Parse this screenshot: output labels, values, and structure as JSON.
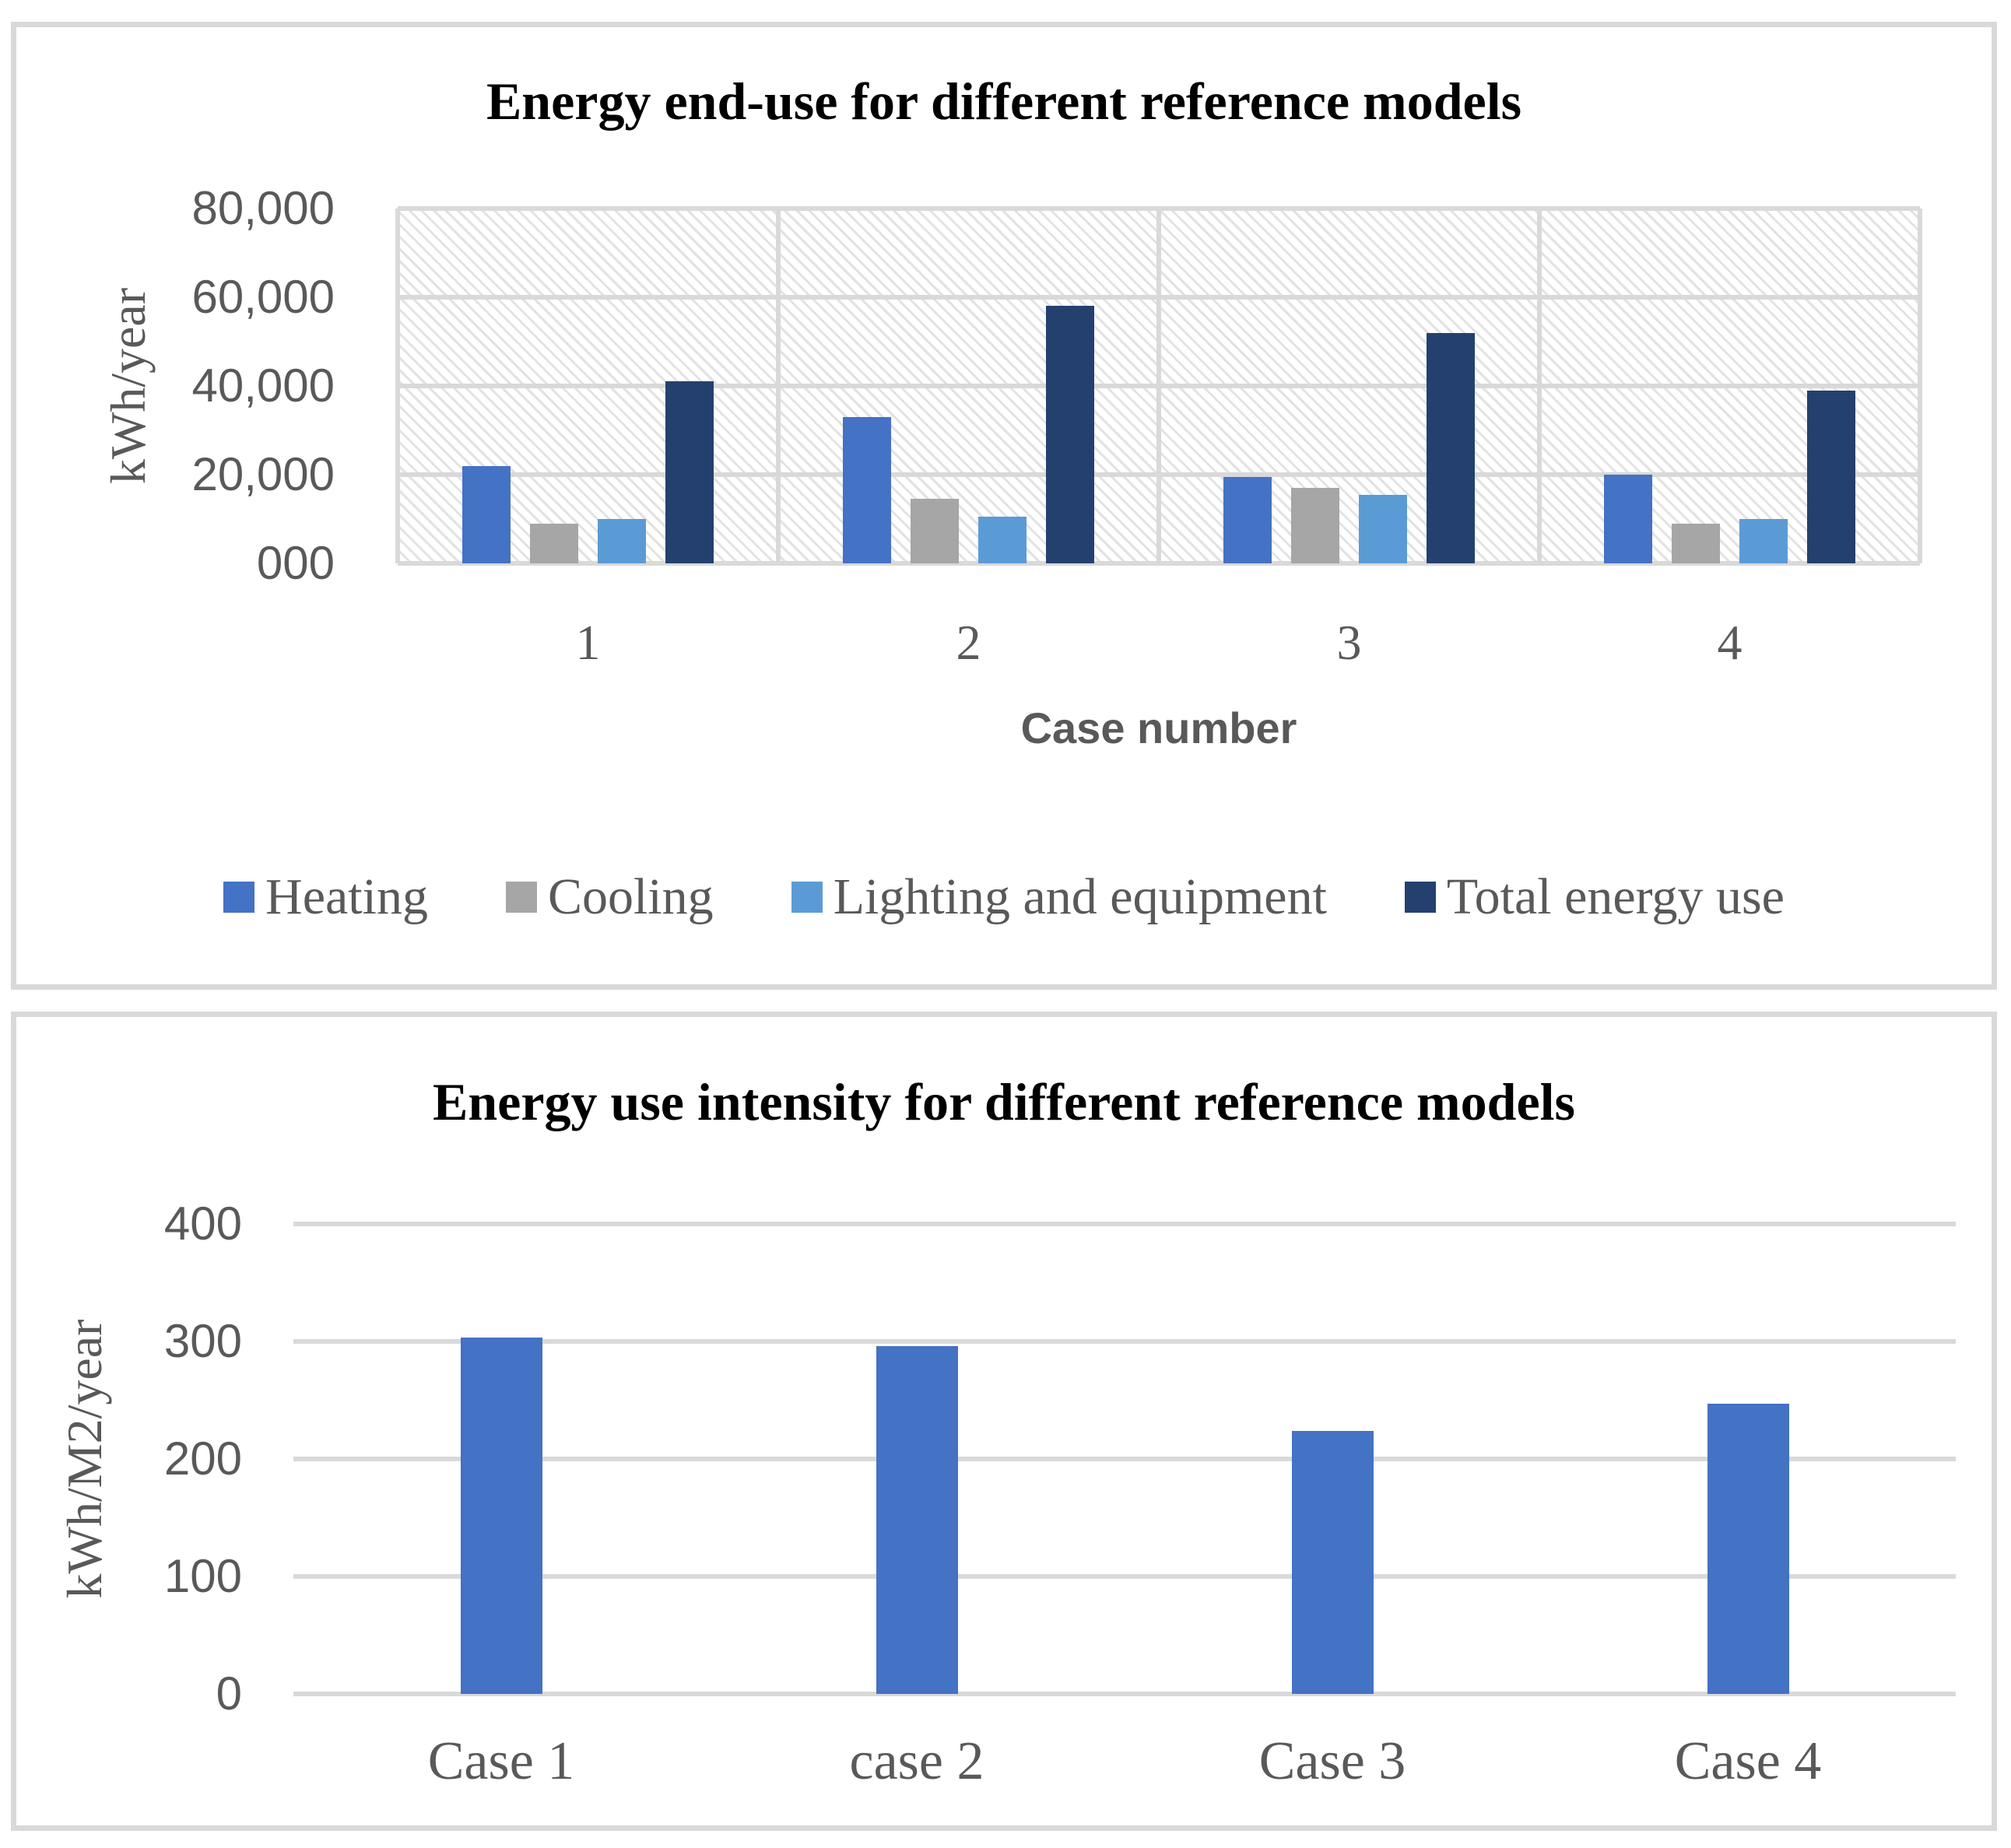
{
  "figure": {
    "background": "#FFFFFF",
    "panel_border_color": "#D9D9D9",
    "gridline_color": "#D9D9D9",
    "axis_text_color": "#595959",
    "title_color": "#000000",
    "hatch_color": "#E2E2E2"
  },
  "chart_data": [
    {
      "type": "bar",
      "title": "Energy end-use for different reference models",
      "xlabel": "Case number",
      "ylabel": "kWh/year",
      "categories": [
        "1",
        "2",
        "3",
        "4"
      ],
      "ylim": [
        0,
        80000
      ],
      "ytick_labels": [
        "80,000",
        "60,000",
        "40,000",
        "20,000",
        "000"
      ],
      "grid": "horizontal+vertical",
      "plot_background": "diagonal-hatch",
      "legend_position": "bottom",
      "series": [
        {
          "name": "Heating",
          "color": "#4472C4",
          "values": [
            22000,
            33000,
            19500,
            20000
          ]
        },
        {
          "name": "Cooling",
          "color": "#A6A6A6",
          "values": [
            9000,
            14500,
            17000,
            9000
          ]
        },
        {
          "name": "Lighting and equipment",
          "color": "#5B9BD5",
          "values": [
            10000,
            10500,
            15500,
            10000
          ]
        },
        {
          "name": "Total energy use",
          "color": "#24406E",
          "values": [
            41000,
            58000,
            52000,
            39000
          ]
        }
      ]
    },
    {
      "type": "bar",
      "title": "Energy use intensity for different reference models",
      "xlabel": "",
      "ylabel": "kWh/M2/year",
      "categories": [
        "Case 1",
        "case 2",
        "Case 3",
        "Case 4"
      ],
      "ylim": [
        0,
        400
      ],
      "ytick_labels": [
        "400",
        "300",
        "200",
        "100",
        "0"
      ],
      "grid": "horizontal",
      "plot_background": "white",
      "legend_position": "none",
      "series": [
        {
          "name": "Energy use intensity",
          "color": "#4472C4",
          "values": [
            303,
            296,
            224,
            247
          ]
        }
      ]
    }
  ]
}
